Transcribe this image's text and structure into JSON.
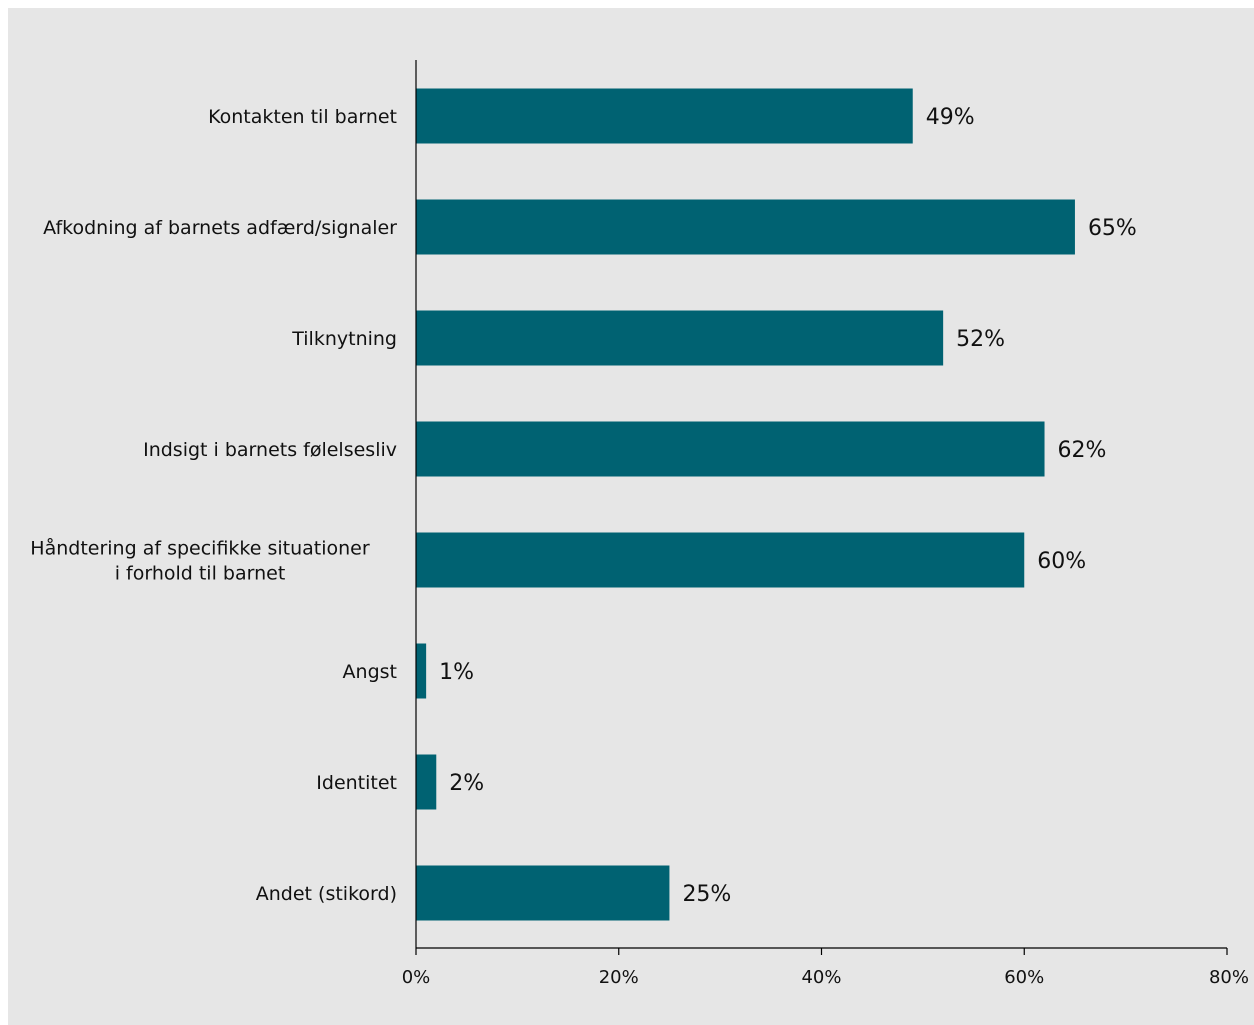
{
  "chart_data": {
    "type": "bar",
    "orientation": "horizontal",
    "categories": [
      [
        "Kontakten til barnet"
      ],
      [
        "Afkodning af barnets adfærd/signaler"
      ],
      [
        "Tilknytning"
      ],
      [
        "Indsigt i barnets følelsesliv"
      ],
      [
        "Håndtering af specifikke situationer",
        "i forhold til barnet"
      ],
      [
        "Angst"
      ],
      [
        "Identitet"
      ],
      [
        "Andet (stikord)"
      ]
    ],
    "values": [
      49,
      65,
      52,
      62,
      60,
      1,
      2,
      25
    ],
    "data_labels": [
      "49%",
      "65%",
      "52%",
      "62%",
      "60%",
      "1%",
      "2%",
      "25%"
    ],
    "x_ticks": [
      "0%",
      "20%",
      "40%",
      "60%",
      "80%"
    ],
    "xlim": [
      0,
      80
    ],
    "grid": false,
    "legend": "none",
    "colors": {
      "bar": "#006272",
      "background": "#e6e6e6",
      "axis": "#000000",
      "text": "#111111"
    }
  }
}
